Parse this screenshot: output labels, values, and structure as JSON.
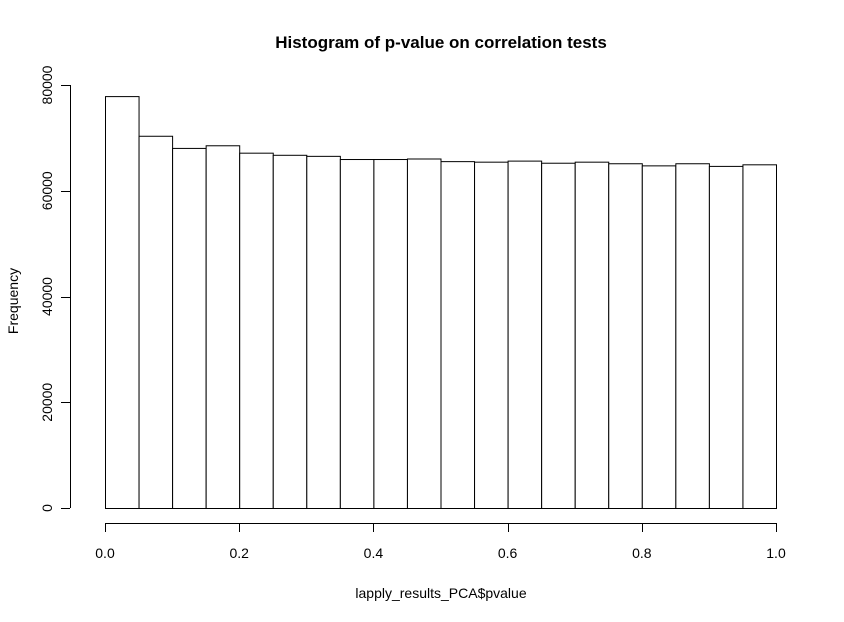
{
  "chart_data": {
    "type": "bar",
    "title": "Histogram of p-value on correlation tests",
    "xlabel": "lapply_results_PCA$pvalue",
    "ylabel": "Frequency",
    "bin_edges": [
      0.0,
      0.05,
      0.1,
      0.15,
      0.2,
      0.25,
      0.3,
      0.35,
      0.4,
      0.45,
      0.5,
      0.55,
      0.6,
      0.65,
      0.7,
      0.75,
      0.8,
      0.85,
      0.9,
      0.95,
      1.0
    ],
    "values": [
      77900,
      70400,
      68100,
      68600,
      67200,
      66800,
      66600,
      66000,
      66000,
      66100,
      65600,
      65500,
      65700,
      65300,
      65500,
      65200,
      64800,
      65200,
      64700,
      65000
    ],
    "xlim": [
      0,
      1
    ],
    "ylim": [
      0,
      80000
    ],
    "xticks": [
      0.0,
      0.2,
      0.4,
      0.6,
      0.8,
      1.0
    ],
    "xtick_labels": [
      "0.0",
      "0.2",
      "0.4",
      "0.6",
      "0.8",
      "1.0"
    ],
    "yticks": [
      0,
      20000,
      40000,
      60000,
      80000
    ],
    "ytick_labels": [
      "0",
      "20000",
      "40000",
      "60000",
      "80000"
    ],
    "grid": false,
    "bar_fill": "#ffffff",
    "bar_stroke": "#000000"
  }
}
